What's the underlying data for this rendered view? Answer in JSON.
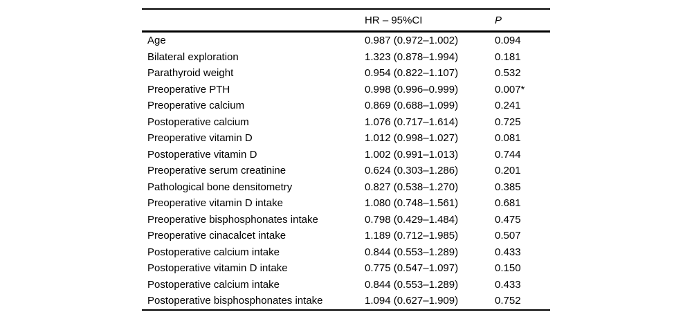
{
  "colors": {
    "text": "#000000",
    "background": "#ffffff",
    "rule": "#000000"
  },
  "table": {
    "headers": [
      "",
      "HR – 95%CI",
      "P"
    ],
    "rows": [
      {
        "label": "Age",
        "hr_ci": "0.987 (0.972–1.002)",
        "p": "0.094"
      },
      {
        "label": "Bilateral exploration",
        "hr_ci": "1.323 (0.878–1.994)",
        "p": "0.181"
      },
      {
        "label": "Parathyroid weight",
        "hr_ci": "0.954 (0.822–1.107)",
        "p": "0.532"
      },
      {
        "label": "Preoperative PTH",
        "hr_ci": "0.998 (0.996–0.999)",
        "p": "0.007*"
      },
      {
        "label": "Preoperative calcium",
        "hr_ci": "0.869 (0.688–1.099)",
        "p": "0.241"
      },
      {
        "label": "Postoperative calcium",
        "hr_ci": "1.076 (0.717–1.614)",
        "p": "0.725"
      },
      {
        "label": "Preoperative vitamin D",
        "hr_ci": "1.012 (0.998–1.027)",
        "p": "0.081"
      },
      {
        "label": "Postoperative vitamin D",
        "hr_ci": "1.002 (0.991–1.013)",
        "p": "0.744"
      },
      {
        "label": "Preoperative serum creatinine",
        "hr_ci": "0.624 (0.303–1.286)",
        "p": "0.201"
      },
      {
        "label": "Pathological bone densitometry",
        "hr_ci": "0.827 (0.538–1.270)",
        "p": "0.385"
      },
      {
        "label": "Preoperative vitamin D intake",
        "hr_ci": "1.080 (0.748–1.561)",
        "p": "0.681"
      },
      {
        "label": "Preoperative bisphosphonates intake",
        "hr_ci": "0.798 (0.429–1.484)",
        "p": "0.475"
      },
      {
        "label": "Preoperative cinacalcet intake",
        "hr_ci": "1.189 (0.712–1.985)",
        "p": "0.507"
      },
      {
        "label": "Postoperative calcium intake",
        "hr_ci": "0.844 (0.553–1.289)",
        "p": "0.433"
      },
      {
        "label": "Postoperative vitamin D intake",
        "hr_ci": "0.775 (0.547–1.097)",
        "p": "0.150"
      },
      {
        "label": "Postoperative calcium intake",
        "hr_ci": "0.844 (0.553–1.289)",
        "p": "0.433"
      },
      {
        "label": "Postoperative bisphosphonates intake",
        "hr_ci": "1.094 (0.627–1.909)",
        "p": "0.752"
      }
    ]
  }
}
